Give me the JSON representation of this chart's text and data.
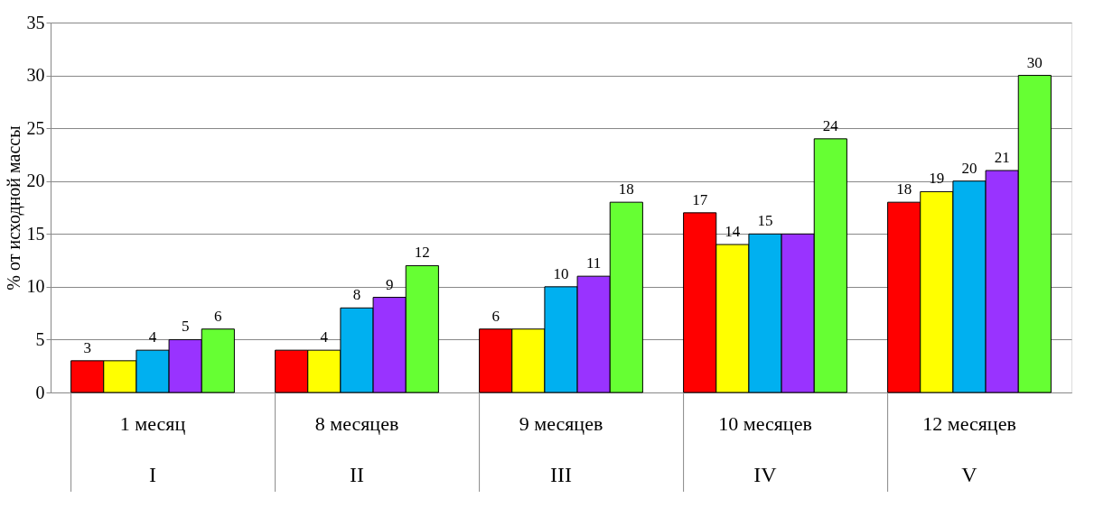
{
  "chart_data": {
    "type": "bar",
    "ylabel": "% от исходной массы",
    "categories": [
      "1 месяц",
      "8 месяцев",
      "9 месяцев",
      "10 месяцев",
      "12 месяцев"
    ],
    "series": [
      {
        "color": "#ff0000",
        "values": [
          3,
          4,
          6,
          17,
          18
        ],
        "value_labels": [
          "3",
          null,
          "6",
          "17",
          "18"
        ]
      },
      {
        "color": "#ffff00",
        "values": [
          3,
          4,
          6,
          14,
          19
        ],
        "value_labels": [
          null,
          "4",
          null,
          "14",
          "19"
        ]
      },
      {
        "color": "#00b0f0",
        "values": [
          4,
          8,
          10,
          15,
          20
        ],
        "value_labels": [
          "4",
          "8",
          "10",
          "15",
          "20"
        ]
      },
      {
        "color": "#9933ff",
        "values": [
          5,
          9,
          11,
          15,
          21
        ],
        "value_labels": [
          "5",
          "9",
          "11",
          null,
          "21"
        ]
      },
      {
        "color": "#66ff33",
        "values": [
          6,
          12,
          18,
          24,
          30
        ],
        "value_labels": [
          "6",
          "12",
          "18",
          "24",
          "30"
        ]
      }
    ],
    "ylim": [
      0,
      35
    ],
    "yticks": [
      0,
      5,
      10,
      15,
      20,
      25,
      30,
      35
    ],
    "grid": "y",
    "annotations": [
      "I",
      "II",
      "III",
      "IV",
      "V"
    ]
  }
}
